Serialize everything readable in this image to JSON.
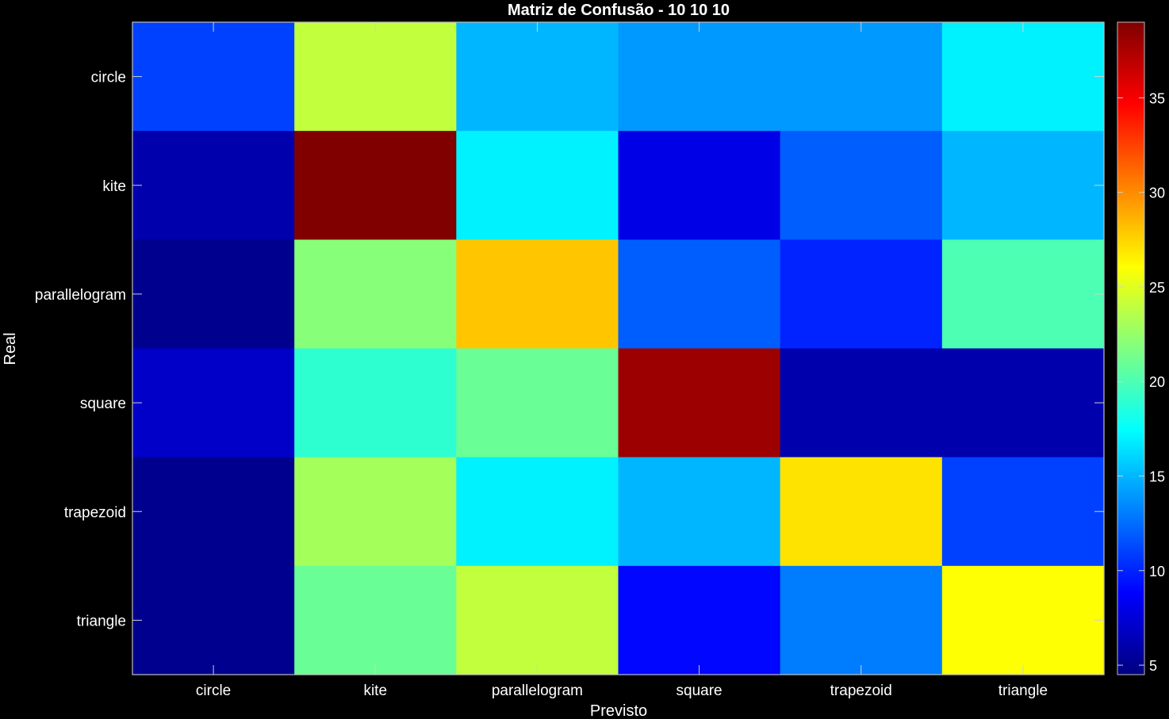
{
  "chart_data": {
    "type": "heatmap",
    "title": "Matriz de Confusão - 10  10  10",
    "xlabel": "Previsto",
    "ylabel": "Real",
    "x_categories": [
      "circle",
      "kite",
      "parallelogram",
      "square",
      "trapezoid",
      "triangle"
    ],
    "y_categories": [
      "circle",
      "kite",
      "parallelogram",
      "square",
      "trapezoid",
      "triangle"
    ],
    "values": [
      [
        11,
        24,
        15,
        14,
        14,
        17
      ],
      [
        6,
        39,
        17,
        8,
        12,
        15
      ],
      [
        5,
        22,
        28,
        12,
        10,
        20
      ],
      [
        7,
        19,
        21,
        38,
        6,
        6
      ],
      [
        5,
        23,
        17,
        15,
        27,
        11
      ],
      [
        5,
        21,
        24,
        9,
        13,
        26
      ]
    ],
    "colorbar": {
      "min": 4.5,
      "max": 39,
      "ticks": [
        5,
        10,
        15,
        20,
        25,
        30,
        35
      ],
      "colormap": "jet"
    },
    "grid": false,
    "background": "#000000",
    "text_color": "#ffffff"
  }
}
